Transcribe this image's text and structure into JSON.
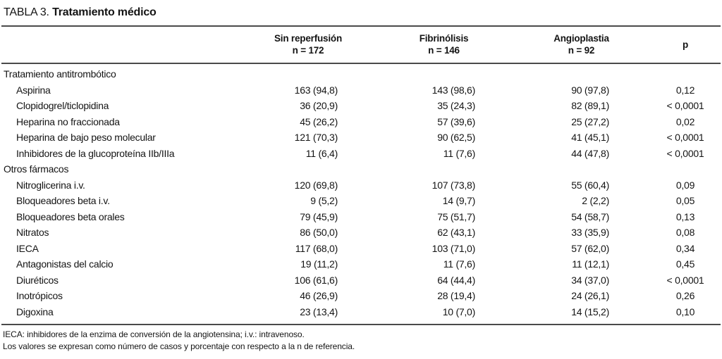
{
  "title": {
    "label": "TABLA 3.",
    "text": "Tratamiento médico"
  },
  "table": {
    "columns": [
      {
        "label": "Sin reperfusión",
        "sublabel": "n = 172"
      },
      {
        "label": "Fibrinólisis",
        "sublabel": "n = 146"
      },
      {
        "label": "Angioplastia",
        "sublabel": "n = 92"
      },
      {
        "label": "p",
        "sublabel": ""
      }
    ],
    "rows": [
      {
        "type": "section",
        "label": "Tratamiento antitrombótico",
        "values": [
          "",
          "",
          "",
          ""
        ]
      },
      {
        "type": "item",
        "label": "Aspirina",
        "values": [
          "163 (94,8)",
          "143 (98,6)",
          "90 (97,8)",
          "0,12"
        ]
      },
      {
        "type": "item",
        "label": "Clopidogrel/ticlopidina",
        "values": [
          "36 (20,9)",
          "35 (24,3)",
          "82 (89,1)",
          "< 0,0001"
        ]
      },
      {
        "type": "item",
        "label": "Heparina no fraccionada",
        "values": [
          "45 (26,2)",
          "57 (39,6)",
          "25 (27,2)",
          "0,02"
        ]
      },
      {
        "type": "item",
        "label": "Heparina de bajo peso molecular",
        "values": [
          "121 (70,3)",
          "90 (62,5)",
          "41 (45,1)",
          "< 0,0001"
        ]
      },
      {
        "type": "item",
        "label": "Inhibidores de la glucoproteína IIb/IIIa",
        "values": [
          "11 (6,4)",
          "11 (7,6)",
          "44 (47,8)",
          "< 0,0001"
        ]
      },
      {
        "type": "section",
        "label": "Otros fármacos",
        "values": [
          "",
          "",
          "",
          ""
        ]
      },
      {
        "type": "item",
        "label": "Nitroglicerina i.v.",
        "values": [
          "120 (69,8)",
          "107 (73,8)",
          "55 (60,4)",
          "0,09"
        ]
      },
      {
        "type": "item",
        "label": "Bloqueadores beta i.v.",
        "values": [
          "9 (5,2)",
          "14 (9,7)",
          "2 (2,2)",
          "0,05"
        ]
      },
      {
        "type": "item",
        "label": "Bloqueadores beta orales",
        "values": [
          "79 (45,9)",
          "75 (51,7)",
          "54 (58,7)",
          "0,13"
        ]
      },
      {
        "type": "item",
        "label": "Nitratos",
        "values": [
          "86 (50,0)",
          "62 (43,1)",
          "33 (35,9)",
          "0,08"
        ]
      },
      {
        "type": "item",
        "label": "IECA",
        "values": [
          "117 (68,0)",
          "103 (71,0)",
          "57 (62,0)",
          "0,34"
        ]
      },
      {
        "type": "item",
        "label": "Antagonistas del calcio",
        "values": [
          "19 (11,2)",
          "11 (7,6)",
          "11 (12,1)",
          "0,45"
        ]
      },
      {
        "type": "item",
        "label": "Diuréticos",
        "values": [
          "106 (61,6)",
          "64 (44,4)",
          "34 (37,0)",
          "< 0,0001"
        ]
      },
      {
        "type": "item",
        "label": "Inotrópicos",
        "values": [
          "46 (26,9)",
          "28 (19,4)",
          "24 (26,1)",
          "0,26"
        ]
      },
      {
        "type": "item",
        "label": "Digoxina",
        "values": [
          "23 (13,4)",
          "10 (7,0)",
          "14 (15,2)",
          "0,10"
        ]
      }
    ]
  },
  "footnotes": [
    "IECA: inhibidores de la enzima de conversión de la angiotensina; i.v.: intravenoso.",
    "Los valores se expresan como número de casos y porcentaje con respecto a la n de referencia."
  ]
}
